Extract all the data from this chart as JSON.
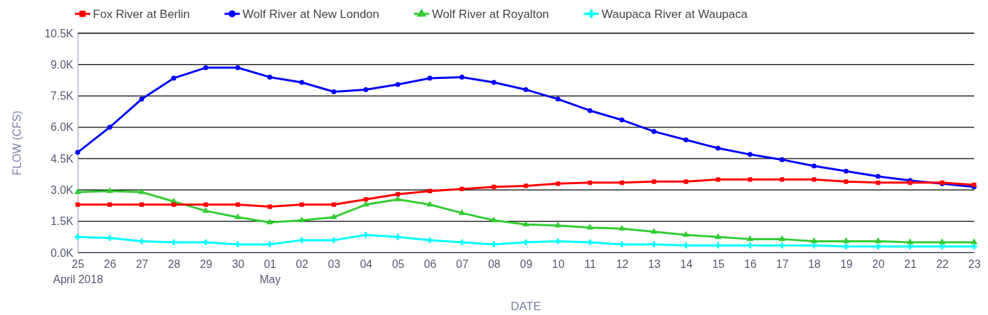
{
  "chart_data": {
    "type": "line",
    "xlabel": "DATE",
    "ylabel": "FLOW (CFS)",
    "x": [
      "2018-04-25",
      "2018-04-26",
      "2018-04-27",
      "2018-04-28",
      "2018-04-29",
      "2018-04-30",
      "2018-05-01",
      "2018-05-02",
      "2018-05-03",
      "2018-05-04",
      "2018-05-05",
      "2018-05-06",
      "2018-05-07",
      "2018-05-08",
      "2018-05-09",
      "2018-05-10",
      "2018-05-11",
      "2018-05-12",
      "2018-05-13",
      "2018-05-14",
      "2018-05-15",
      "2018-05-16",
      "2018-05-17",
      "2018-05-18",
      "2018-05-19",
      "2018-05-20",
      "2018-05-21",
      "2018-05-22",
      "2018-05-23"
    ],
    "series": [
      {
        "name": "Fox River at Berlin",
        "color": "#ff0000",
        "marker": "square",
        "values": [
          2300,
          2300,
          2300,
          2300,
          2300,
          2300,
          2200,
          2300,
          2300,
          2550,
          2800,
          2950,
          3050,
          3150,
          3200,
          3300,
          3350,
          3350,
          3400,
          3400,
          3500,
          3500,
          3500,
          3500,
          3400,
          3350,
          3350,
          3350,
          3250
        ]
      },
      {
        "name": "Wolf River at New London",
        "color": "#0000ff",
        "marker": "circle",
        "values": [
          4800,
          6000,
          7350,
          8350,
          8850,
          8850,
          8400,
          8150,
          7700,
          7800,
          8050,
          8350,
          8400,
          8150,
          7800,
          7350,
          6800,
          6350,
          5800,
          5400,
          5000,
          4700,
          4450,
          4150,
          3900,
          3650,
          3450,
          3300,
          3150
        ]
      },
      {
        "name": "Wolf River at Royalton",
        "color": "#33cc33",
        "marker": "triangle",
        "values": [
          2900,
          2950,
          2900,
          2450,
          2000,
          1700,
          1450,
          1550,
          1700,
          2300,
          2550,
          2300,
          1900,
          1550,
          1350,
          1300,
          1200,
          1150,
          1000,
          850,
          750,
          650,
          650,
          550,
          550,
          550,
          500,
          500,
          500
        ]
      },
      {
        "name": "Waupaca River at Waupaca",
        "color": "#00ffff",
        "marker": "cross",
        "values": [
          750,
          700,
          550,
          500,
          500,
          400,
          400,
          600,
          600,
          850,
          750,
          600,
          500,
          400,
          500,
          550,
          500,
          400,
          400,
          350,
          350,
          350,
          350,
          350,
          300,
          300,
          300,
          300,
          300
        ]
      }
    ],
    "xlim": [
      "2018-04-25",
      "2018-05-23"
    ],
    "xticks": [
      {
        "value": "2018-04-25",
        "label": "25\nApril 2018"
      },
      {
        "value": "2018-04-26",
        "label": "26"
      },
      {
        "value": "2018-04-27",
        "label": "27"
      },
      {
        "value": "2018-04-28",
        "label": "28"
      },
      {
        "value": "2018-04-29",
        "label": "29"
      },
      {
        "value": "2018-04-30",
        "label": "30"
      },
      {
        "value": "2018-05-01",
        "label": "01\nMay"
      },
      {
        "value": "2018-05-02",
        "label": "02"
      },
      {
        "value": "2018-05-03",
        "label": "03"
      },
      {
        "value": "2018-05-04",
        "label": "04"
      },
      {
        "value": "2018-05-05",
        "label": "05"
      },
      {
        "value": "2018-05-06",
        "label": "06"
      },
      {
        "value": "2018-05-07",
        "label": "07"
      },
      {
        "value": "2018-05-08",
        "label": "08"
      },
      {
        "value": "2018-05-09",
        "label": "09"
      },
      {
        "value": "2018-05-10",
        "label": "10"
      },
      {
        "value": "2018-05-11",
        "label": "11"
      },
      {
        "value": "2018-05-12",
        "label": "12"
      },
      {
        "value": "2018-05-13",
        "label": "13"
      },
      {
        "value": "2018-05-14",
        "label": "14"
      },
      {
        "value": "2018-05-15",
        "label": "15"
      },
      {
        "value": "2018-05-16",
        "label": "16"
      },
      {
        "value": "2018-05-17",
        "label": "17"
      },
      {
        "value": "2018-05-18",
        "label": "18"
      },
      {
        "value": "2018-05-19",
        "label": "19"
      },
      {
        "value": "2018-05-20",
        "label": "20"
      },
      {
        "value": "2018-05-21",
        "label": "21"
      },
      {
        "value": "2018-05-22",
        "label": "22"
      },
      {
        "value": "2018-05-23",
        "label": "23"
      }
    ],
    "ylim": [
      0,
      10500
    ],
    "yticks": [
      {
        "value": 0,
        "label": "0.0K"
      },
      {
        "value": 1500,
        "label": "1.5K"
      },
      {
        "value": 3000,
        "label": "3.0K"
      },
      {
        "value": 4500,
        "label": "4.5K"
      },
      {
        "value": 6000,
        "label": "6.0K"
      },
      {
        "value": 7500,
        "label": "7.5K"
      },
      {
        "value": 9000,
        "label": "9.0K"
      },
      {
        "value": 10500,
        "label": "10.5K"
      }
    ],
    "grid": "y",
    "legend": "top"
  }
}
